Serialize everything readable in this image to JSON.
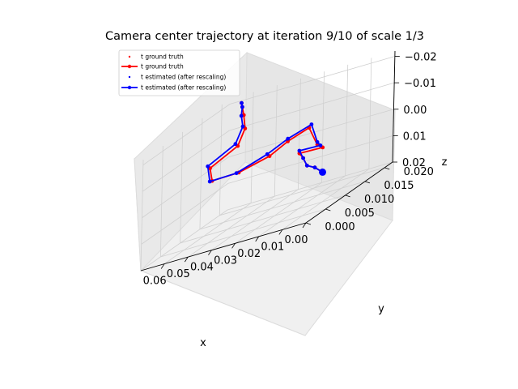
{
  "chart_data": {
    "type": "line",
    "title": "Camera center trajectory at iteration 9/10 of scale 1/3",
    "xlabel": "x",
    "ylabel": "y",
    "zlabel": "z",
    "xlim": [
      0.0,
      0.07
    ],
    "ylim": [
      0.0,
      0.022
    ],
    "zlim": [
      0.02,
      -0.022
    ],
    "x_ticks": [
      "0.00",
      "0.01",
      "0.02",
      "0.03",
      "0.04",
      "0.05",
      "0.06"
    ],
    "y_ticks": [
      "0.000",
      "0.005",
      "0.010",
      "0.015",
      "0.020"
    ],
    "z_ticks": [
      "−0.02",
      "−0.01",
      "0.00",
      "0.01",
      "0.02"
    ],
    "legend": {
      "location": "upper-left",
      "entries": [
        "t ground truth",
        "t ground truth",
        "t estimated (after rescaling)",
        "t estimated (after rescaling)"
      ]
    },
    "series": [
      {
        "name": "t ground truth",
        "color": "#ff0000",
        "points": [
          {
            "x": 0.0,
            "y": 0.004,
            "z": 0.005
          },
          {
            "x": 0.005,
            "y": 0.005,
            "z": 0.003
          },
          {
            "x": 0.01,
            "y": 0.006,
            "z": 0.002
          },
          {
            "x": 0.015,
            "y": 0.008,
            "z": 0.0
          },
          {
            "x": 0.02,
            "y": 0.01,
            "z": -0.001
          },
          {
            "x": 0.02,
            "y": 0.016,
            "z": 0.003
          },
          {
            "x": 0.024,
            "y": 0.017,
            "z": 0.002
          },
          {
            "x": 0.026,
            "y": 0.016,
            "z": -0.006
          },
          {
            "x": 0.03,
            "y": 0.013,
            "z": -0.005
          },
          {
            "x": 0.036,
            "y": 0.012,
            "z": -0.002
          },
          {
            "x": 0.044,
            "y": 0.009,
            "z": -0.001
          },
          {
            "x": 0.052,
            "y": 0.007,
            "z": -0.002
          },
          {
            "x": 0.053,
            "y": 0.007,
            "z": -0.007
          },
          {
            "x": 0.048,
            "y": 0.011,
            "z": -0.01
          },
          {
            "x": 0.05,
            "y": 0.014,
            "z": -0.014
          },
          {
            "x": 0.054,
            "y": 0.016,
            "z": -0.018
          },
          {
            "x": 0.058,
            "y": 0.018,
            "z": -0.02
          },
          {
            "x": 0.06,
            "y": 0.019,
            "z": -0.021
          }
        ]
      },
      {
        "name": "t estimated (after rescaling)",
        "color": "#0000ff",
        "points": [
          {
            "x": 0.0,
            "y": 0.004,
            "z": 0.005
          },
          {
            "x": 0.005,
            "y": 0.005,
            "z": 0.003
          },
          {
            "x": 0.01,
            "y": 0.006,
            "z": 0.002
          },
          {
            "x": 0.015,
            "y": 0.008,
            "z": 0.0
          },
          {
            "x": 0.02,
            "y": 0.01,
            "z": -0.002
          },
          {
            "x": 0.021,
            "y": 0.016,
            "z": 0.002
          },
          {
            "x": 0.024,
            "y": 0.017,
            "z": 0.001
          },
          {
            "x": 0.025,
            "y": 0.016,
            "z": -0.007
          },
          {
            "x": 0.03,
            "y": 0.013,
            "z": -0.006
          },
          {
            "x": 0.037,
            "y": 0.012,
            "z": -0.003
          },
          {
            "x": 0.045,
            "y": 0.009,
            "z": -0.001
          },
          {
            "x": 0.053,
            "y": 0.007,
            "z": -0.002
          },
          {
            "x": 0.054,
            "y": 0.007,
            "z": -0.008
          },
          {
            "x": 0.049,
            "y": 0.011,
            "z": -0.011
          },
          {
            "x": 0.051,
            "y": 0.014,
            "z": -0.015
          },
          {
            "x": 0.055,
            "y": 0.016,
            "z": -0.018
          },
          {
            "x": 0.058,
            "y": 0.018,
            "z": -0.02
          },
          {
            "x": 0.06,
            "y": 0.019,
            "z": -0.021
          }
        ]
      }
    ]
  }
}
